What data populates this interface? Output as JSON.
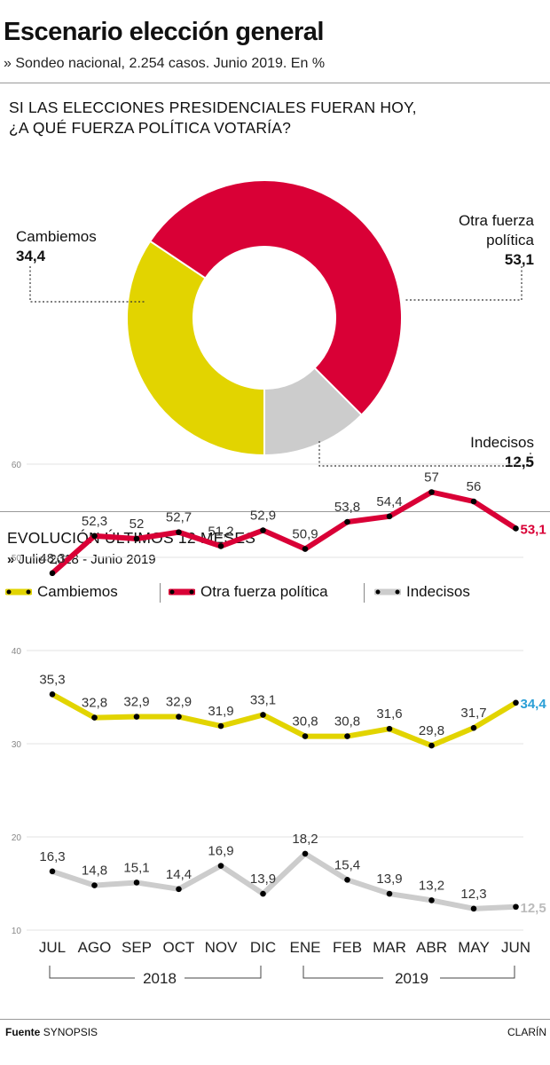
{
  "header": {
    "title": "Escenario elección general",
    "subtitle": "» Sondeo nacional, 2.254 casos. Junio 2019. En %"
  },
  "donut": {
    "question_line1": "SI LAS ELECCIONES PRESIDENCIALES FUERAN HOY,",
    "question_line2": "¿A QUÉ FUERZA POLÍTICA VOTARÍA?",
    "labels": {
      "cambiemos_name": "Cambiemos",
      "cambiemos_value": "34,4",
      "otra_name_line1": "Otra fuerza",
      "otra_name_line2": "política",
      "otra_value": "53,1",
      "indecisos_name": "Indecisos",
      "indecisos_value": "12,5"
    }
  },
  "evolution": {
    "title": "EVOLUCIÓN ÚLTIMOS 12 MESES",
    "subtitle_marker": "»",
    "subtitle": "Julio 2018 - Junio 2019",
    "legend": [
      "Cambiemos",
      "Otra fuerza política",
      "Indecisos"
    ],
    "year_labels": [
      "2018",
      "2019"
    ]
  },
  "footer": {
    "source_label": "Fuente",
    "source_value": "SYNOPSIS",
    "brand": "CLARÍN"
  },
  "colors": {
    "cambiemos": "#e2d400",
    "otra": "#d90036",
    "indecisos": "#cccccc",
    "highlight_cambiemos_text": "#2a9fd6",
    "highlight_indecisos_text": "#bbbbbb"
  },
  "chart_data": [
    {
      "type": "pie",
      "title": "SI LAS ELECCIONES PRESIDENCIALES FUERAN HOY, ¿A QUÉ FUERZA POLÍTICA VOTARÍA?",
      "style": "donut",
      "categories": [
        "Cambiemos",
        "Otra fuerza política",
        "Indecisos"
      ],
      "values": [
        34.4,
        53.1,
        12.5
      ]
    },
    {
      "type": "line",
      "title": "EVOLUCIÓN ÚLTIMOS 12 MESES",
      "categories": [
        "JUL",
        "AGO",
        "SEP",
        "OCT",
        "NOV",
        "DIC",
        "ENE",
        "FEB",
        "MAR",
        "ABR",
        "MAY",
        "JUN"
      ],
      "value_labels_decimal": ",",
      "ylim": [
        10,
        60
      ],
      "yticks": [
        10,
        20,
        30,
        40,
        50,
        60
      ],
      "grid": true,
      "legend": "top",
      "series": [
        {
          "name": "Otra fuerza política",
          "values": [
            48.3,
            52.3,
            52,
            52.7,
            51.2,
            52.9,
            50.9,
            53.8,
            54.4,
            57,
            56,
            53.1
          ]
        },
        {
          "name": "Cambiemos",
          "values": [
            35.3,
            32.8,
            32.9,
            32.9,
            31.9,
            33.1,
            30.8,
            30.8,
            31.6,
            29.8,
            31.7,
            34.4
          ]
        },
        {
          "name": "Indecisos",
          "values": [
            16.3,
            14.8,
            15.1,
            14.4,
            16.9,
            13.9,
            18.2,
            15.4,
            13.9,
            13.2,
            12.3,
            12.5
          ]
        }
      ]
    }
  ]
}
